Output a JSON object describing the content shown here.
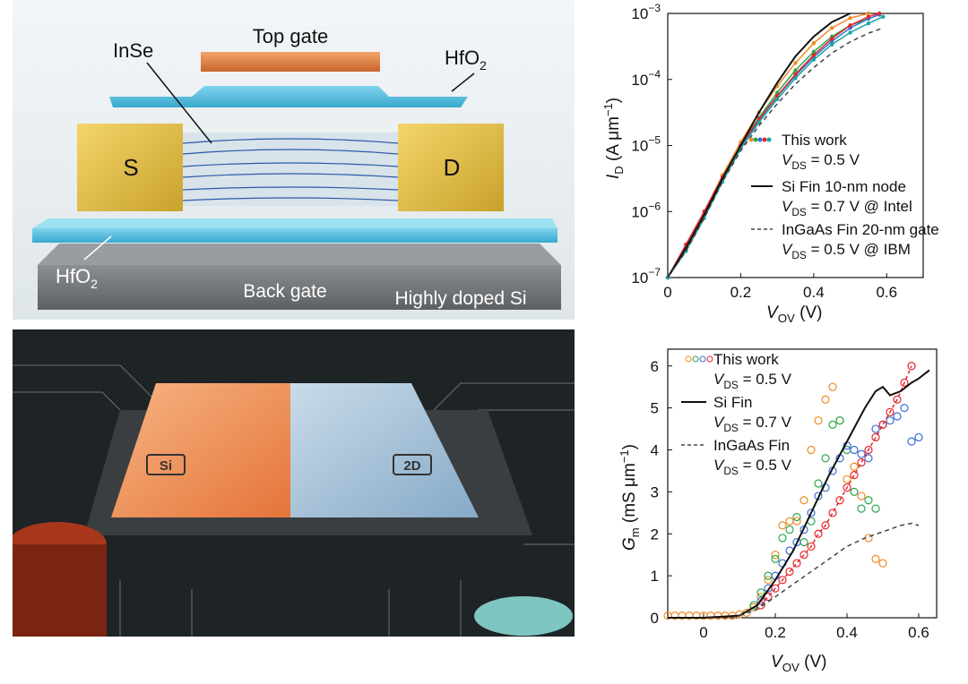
{
  "schematic": {
    "top_gate": "Top gate",
    "hfo2_top": "HfO",
    "hfo2_sub": "2",
    "inse": "InSe",
    "source": "S",
    "drain": "D",
    "hfo2_bottom": "HfO",
    "hfo2_bottom_sub": "2",
    "back_gate": "Back gate",
    "substrate": "Highly doped Si"
  },
  "chip": {
    "si_label": "Si",
    "twod_label": "2D"
  },
  "colors": {
    "orange": "#f08a24",
    "green": "#2aa84a",
    "blue": "#3a6fd8",
    "red": "#e4262c",
    "teal": "#1aa5a5"
  },
  "chart_data": [
    {
      "type": "line",
      "title": "",
      "xlabel": "V",
      "xlabel_sub": "OV",
      "xlabel_unit": " (V)",
      "ylabel": "I",
      "ylabel_sub": "D",
      "ylabel_unit": " (A μm",
      "ylabel_sup": "−1",
      "ylabel_close": ")",
      "xlim": [
        0,
        0.7
      ],
      "ylim_log10": [
        -7,
        -3
      ],
      "xticks": [
        "0",
        "0.2",
        "0.4",
        "0.6"
      ],
      "yticks": [
        "10",
        "10",
        "10",
        "10",
        "10"
      ],
      "ytick_exps": [
        "−7",
        "−6",
        "−5",
        "−4",
        "−3"
      ],
      "legend": [
        {
          "label": "This work",
          "line2": "V",
          "line2_sub": "DS",
          "line2_rest": " = 0.5 V",
          "style": "dots"
        },
        {
          "label": "Si Fin 10-nm node",
          "line2": "V",
          "line2_sub": "DS",
          "line2_rest": " = 0.7 V @ Intel",
          "style": "solid"
        },
        {
          "label": "InGaAs Fin 20-nm gate",
          "line2": "V",
          "line2_sub": "DS",
          "line2_rest": " = 0.5 V @ IBM",
          "style": "dashed"
        }
      ],
      "series": [
        {
          "name": "This work (orange)",
          "x": [
            0,
            0.05,
            0.1,
            0.15,
            0.2,
            0.25,
            0.3,
            0.35,
            0.4,
            0.45,
            0.5,
            0.55
          ],
          "log10y": [
            -7,
            -6.5,
            -6,
            -5.45,
            -4.95,
            -4.5,
            -4.1,
            -3.75,
            -3.45,
            -3.22,
            -3.07,
            -3.0
          ]
        },
        {
          "name": "This work (green)",
          "x": [
            0,
            0.05,
            0.1,
            0.15,
            0.2,
            0.25,
            0.3,
            0.35,
            0.4,
            0.45,
            0.5,
            0.55
          ],
          "log10y": [
            -7,
            -6.55,
            -6.05,
            -5.5,
            -5.0,
            -4.58,
            -4.2,
            -3.86,
            -3.58,
            -3.35,
            -3.18,
            -3.08
          ]
        },
        {
          "name": "This work (blue)",
          "x": [
            0,
            0.05,
            0.1,
            0.15,
            0.2,
            0.25,
            0.3,
            0.35,
            0.4,
            0.45,
            0.5,
            0.55,
            0.58
          ],
          "log10y": [
            -7,
            -6.55,
            -6.05,
            -5.5,
            -5.02,
            -4.62,
            -4.26,
            -3.94,
            -3.66,
            -3.42,
            -3.22,
            -3.08,
            -3.02
          ]
        },
        {
          "name": "This work (red)",
          "x": [
            0,
            0.05,
            0.1,
            0.15,
            0.2,
            0.25,
            0.3,
            0.35,
            0.4,
            0.45,
            0.5,
            0.55,
            0.58
          ],
          "log10y": [
            -7,
            -6.5,
            -6.0,
            -5.48,
            -5.0,
            -4.6,
            -4.25,
            -3.92,
            -3.63,
            -3.38,
            -3.18,
            -3.05,
            -3.0
          ]
        },
        {
          "name": "This work (teal)",
          "x": [
            0,
            0.05,
            0.1,
            0.15,
            0.2,
            0.25,
            0.3,
            0.35,
            0.4,
            0.45,
            0.5,
            0.55,
            0.59
          ],
          "log10y": [
            -7,
            -6.6,
            -6.1,
            -5.55,
            -5.05,
            -4.65,
            -4.3,
            -3.98,
            -3.7,
            -3.47,
            -3.29,
            -3.15,
            -3.05
          ]
        },
        {
          "name": "Si Fin 10-nm node",
          "x": [
            0,
            0.05,
            0.1,
            0.15,
            0.2,
            0.25,
            0.3,
            0.35,
            0.4,
            0.45,
            0.5
          ],
          "log10y": [
            -7,
            -6.55,
            -6.05,
            -5.5,
            -5.0,
            -4.5,
            -4.05,
            -3.65,
            -3.35,
            -3.13,
            -3.0
          ]
        },
        {
          "name": "InGaAs Fin 20-nm gate",
          "x": [
            0,
            0.05,
            0.1,
            0.15,
            0.2,
            0.25,
            0.3,
            0.35,
            0.4,
            0.45,
            0.5,
            0.55,
            0.59
          ],
          "log10y": [
            -7,
            -6.6,
            -6.1,
            -5.55,
            -5.08,
            -4.7,
            -4.37,
            -4.07,
            -3.82,
            -3.6,
            -3.43,
            -3.3,
            -3.22
          ]
        }
      ]
    },
    {
      "type": "scatter",
      "title": "",
      "xlabel": "V",
      "xlabel_sub": "OV",
      "xlabel_unit": " (V)",
      "ylabel": "G",
      "ylabel_sub": "m",
      "ylabel_unit": " (mS μm",
      "ylabel_sup": "−1",
      "ylabel_close": ")",
      "xlim": [
        -0.1,
        0.65
      ],
      "ylim": [
        0,
        6.4
      ],
      "xticks": [
        "0",
        "0.2",
        "0.4",
        "0.6"
      ],
      "yticks": [
        "0",
        "1",
        "2",
        "3",
        "4",
        "5",
        "6"
      ],
      "legend": [
        {
          "label": "This work",
          "line2": "V",
          "line2_sub": "DS",
          "line2_rest": " = 0.5 V",
          "style": "circles"
        },
        {
          "label": "Si Fin",
          "line2": "V",
          "line2_sub": "DS",
          "line2_rest": " = 0.7 V",
          "style": "solid"
        },
        {
          "label": "InGaAs Fin",
          "line2": "V",
          "line2_sub": "DS",
          "line2_rest": " = 0.5 V",
          "style": "dashed"
        }
      ],
      "series": [
        {
          "name": "Orange points",
          "x": [
            -0.1,
            -0.08,
            -0.06,
            -0.04,
            -0.02,
            0,
            0.02,
            0.04,
            0.06,
            0.08,
            0.1,
            0.12,
            0.14,
            0.16,
            0.18,
            0.2,
            0.22,
            0.24,
            0.26,
            0.28,
            0.3,
            0.32,
            0.34,
            0.36,
            0.38,
            0.4,
            0.42,
            0.44,
            0.46,
            0.48,
            0.5
          ],
          "y": [
            0.05,
            0.05,
            0.05,
            0.05,
            0.05,
            0.05,
            0.05,
            0.05,
            0.05,
            0.05,
            0.08,
            0.12,
            0.25,
            0.5,
            0.9,
            1.5,
            2.2,
            2.3,
            2.3,
            2.8,
            4.0,
            4.7,
            5.2,
            5.5,
            4.7,
            3.3,
            3.6,
            2.9,
            1.9,
            1.4,
            1.3
          ]
        },
        {
          "name": "Green points",
          "x": [
            0.14,
            0.16,
            0.18,
            0.2,
            0.22,
            0.24,
            0.26,
            0.28,
            0.3,
            0.32,
            0.34,
            0.36,
            0.38,
            0.4,
            0.42,
            0.44,
            0.46,
            0.48
          ],
          "y": [
            0.3,
            0.6,
            1.0,
            1.4,
            1.9,
            2.1,
            2.4,
            1.8,
            2.3,
            3.2,
            3.8,
            4.6,
            4.7,
            4.0,
            3.0,
            2.6,
            2.8,
            2.6
          ]
        },
        {
          "name": "Blue points",
          "x": [
            0.16,
            0.18,
            0.2,
            0.22,
            0.24,
            0.26,
            0.28,
            0.3,
            0.32,
            0.34,
            0.36,
            0.38,
            0.4,
            0.42,
            0.44,
            0.46,
            0.48,
            0.5,
            0.52,
            0.54,
            0.56,
            0.58,
            0.6
          ],
          "y": [
            0.4,
            0.7,
            1.0,
            1.3,
            1.6,
            1.8,
            2.1,
            2.5,
            2.9,
            3.1,
            3.5,
            3.8,
            4.1,
            4.0,
            3.9,
            3.8,
            4.5,
            4.6,
            4.7,
            4.8,
            5.0,
            4.2,
            4.3
          ]
        },
        {
          "name": "Red points",
          "x": [
            0.16,
            0.18,
            0.2,
            0.22,
            0.24,
            0.26,
            0.28,
            0.3,
            0.32,
            0.34,
            0.36,
            0.38,
            0.4,
            0.42,
            0.44,
            0.46,
            0.48,
            0.5,
            0.52,
            0.54,
            0.56,
            0.58
          ],
          "y": [
            0.3,
            0.5,
            0.7,
            0.9,
            1.1,
            1.3,
            1.5,
            1.7,
            2.0,
            2.2,
            2.5,
            2.8,
            3.1,
            3.4,
            3.7,
            4.0,
            4.3,
            4.6,
            4.9,
            5.2,
            5.6,
            6.0
          ]
        },
        {
          "name": "Si Fin",
          "x": [
            -0.1,
            0.0,
            0.1,
            0.15,
            0.2,
            0.25,
            0.3,
            0.35,
            0.4,
            0.45,
            0.48,
            0.5,
            0.52,
            0.55,
            0.58,
            0.6,
            0.63
          ],
          "y": [
            0,
            0,
            0.05,
            0.3,
            0.9,
            1.6,
            2.5,
            3.4,
            4.2,
            5.0,
            5.4,
            5.5,
            5.3,
            5.4,
            5.6,
            5.7,
            5.9
          ]
        },
        {
          "name": "InGaAs Fin",
          "x": [
            0.1,
            0.15,
            0.2,
            0.25,
            0.3,
            0.35,
            0.4,
            0.45,
            0.5,
            0.55,
            0.58,
            0.6
          ],
          "y": [
            0.05,
            0.2,
            0.5,
            0.8,
            1.1,
            1.4,
            1.7,
            1.9,
            2.05,
            2.2,
            2.25,
            2.2
          ]
        }
      ]
    }
  ]
}
